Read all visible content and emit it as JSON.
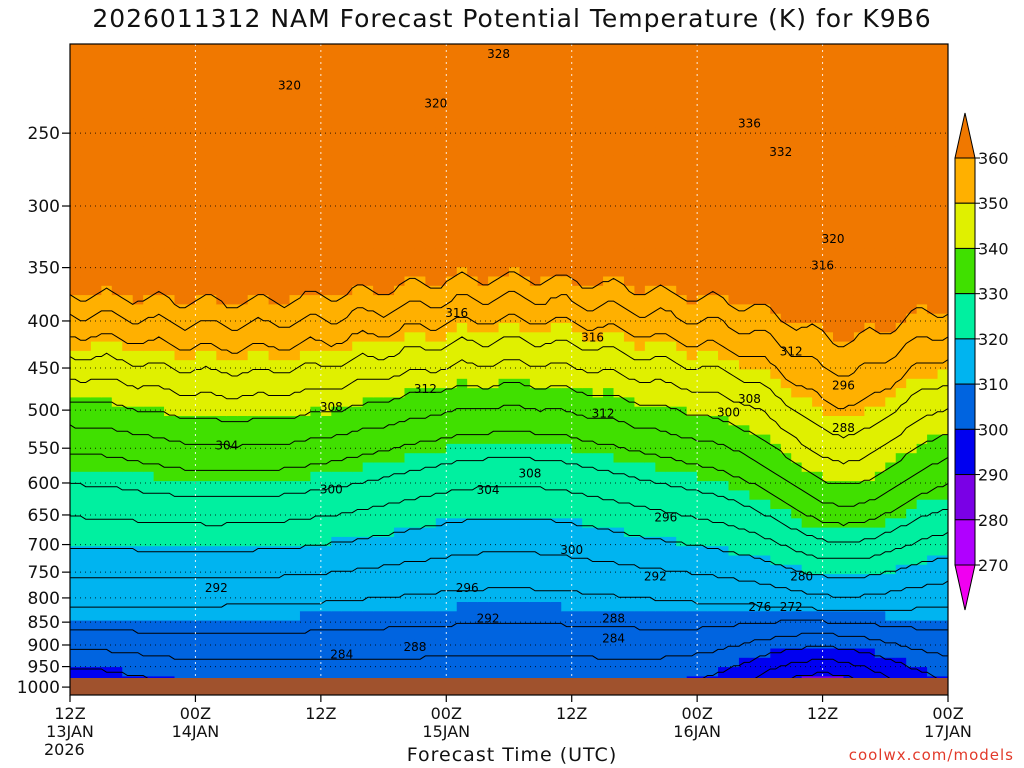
{
  "chart_data": {
    "type": "heatmap",
    "title": "2026011312 NAM Forecast Potential Temperature (K) for K9B6",
    "xlabel": "Forecast Time (UTC)",
    "credit": "coolwx.com/models",
    "x_ticks": [
      {
        "hour": 0,
        "label": "12Z",
        "sub": "13JAN"
      },
      {
        "hour": 12,
        "label": "00Z",
        "sub": "14JAN"
      },
      {
        "hour": 24,
        "label": "12Z",
        "sub": ""
      },
      {
        "hour": 36,
        "label": "00Z",
        "sub": "15JAN"
      },
      {
        "hour": 48,
        "label": "12Z",
        "sub": ""
      },
      {
        "hour": 60,
        "label": "00Z",
        "sub": "16JAN"
      },
      {
        "hour": 72,
        "label": "12Z",
        "sub": ""
      },
      {
        "hour": 84,
        "label": "00Z",
        "sub": "17JAN"
      }
    ],
    "year_label": "2026",
    "x_range": [
      0,
      84
    ],
    "y_ticks": [
      250,
      300,
      350,
      400,
      450,
      500,
      550,
      600,
      650,
      700,
      750,
      800,
      850,
      900,
      950,
      1000
    ],
    "y_range": [
      200,
      1020
    ],
    "y_scale": "log-pressure",
    "levels": [
      270,
      280,
      290,
      300,
      310,
      320,
      330,
      340,
      350,
      360
    ],
    "colors": [
      "#f000f0",
      "#b000ff",
      "#7a00e6",
      "#0000f0",
      "#0064e0",
      "#00b4f0",
      "#00f0a0",
      "#40e000",
      "#e0f000",
      "#ffb000",
      "#f07800"
    ],
    "colorbar_labels": [
      "270",
      "280",
      "290",
      "300",
      "310",
      "320",
      "330",
      "340",
      "350",
      "360"
    ],
    "contour_interval": 4,
    "ground_color": "#a0522d",
    "contour_labels": [
      {
        "text": "328",
        "hour": 41,
        "p": 205
      },
      {
        "text": "320",
        "hour": 21,
        "p": 222
      },
      {
        "text": "320",
        "hour": 35,
        "p": 232
      },
      {
        "text": "336",
        "hour": 65,
        "p": 244
      },
      {
        "text": "332",
        "hour": 68,
        "p": 262
      },
      {
        "text": "320",
        "hour": 73,
        "p": 326
      },
      {
        "text": "316",
        "hour": 72,
        "p": 348
      },
      {
        "text": "316",
        "hour": 37,
        "p": 392
      },
      {
        "text": "316",
        "hour": 50,
        "p": 417
      },
      {
        "text": "312",
        "hour": 69,
        "p": 432
      },
      {
        "text": "312",
        "hour": 34,
        "p": 474
      },
      {
        "text": "296",
        "hour": 74,
        "p": 470
      },
      {
        "text": "308",
        "hour": 25,
        "p": 496
      },
      {
        "text": "308",
        "hour": 65,
        "p": 486
      },
      {
        "text": "300",
        "hour": 63,
        "p": 503
      },
      {
        "text": "312",
        "hour": 51,
        "p": 504
      },
      {
        "text": "288",
        "hour": 74,
        "p": 523
      },
      {
        "text": "304",
        "hour": 15,
        "p": 546
      },
      {
        "text": "308",
        "hour": 44,
        "p": 586
      },
      {
        "text": "304",
        "hour": 40,
        "p": 611
      },
      {
        "text": "300",
        "hour": 25,
        "p": 610
      },
      {
        "text": "296",
        "hour": 57,
        "p": 654
      },
      {
        "text": "300",
        "hour": 48,
        "p": 710
      },
      {
        "text": "292",
        "hour": 56,
        "p": 758
      },
      {
        "text": "280",
        "hour": 70,
        "p": 758
      },
      {
        "text": "292",
        "hour": 14,
        "p": 780
      },
      {
        "text": "296",
        "hour": 38,
        "p": 780
      },
      {
        "text": "276",
        "hour": 66,
        "p": 818
      },
      {
        "text": "272",
        "hour": 69,
        "p": 818
      },
      {
        "text": "292",
        "hour": 40,
        "p": 842
      },
      {
        "text": "288",
        "hour": 52,
        "p": 842
      },
      {
        "text": "284",
        "hour": 52,
        "p": 885
      },
      {
        "text": "288",
        "hour": 33,
        "p": 905
      },
      {
        "text": "284",
        "hour": 26,
        "p": 922
      }
    ]
  }
}
